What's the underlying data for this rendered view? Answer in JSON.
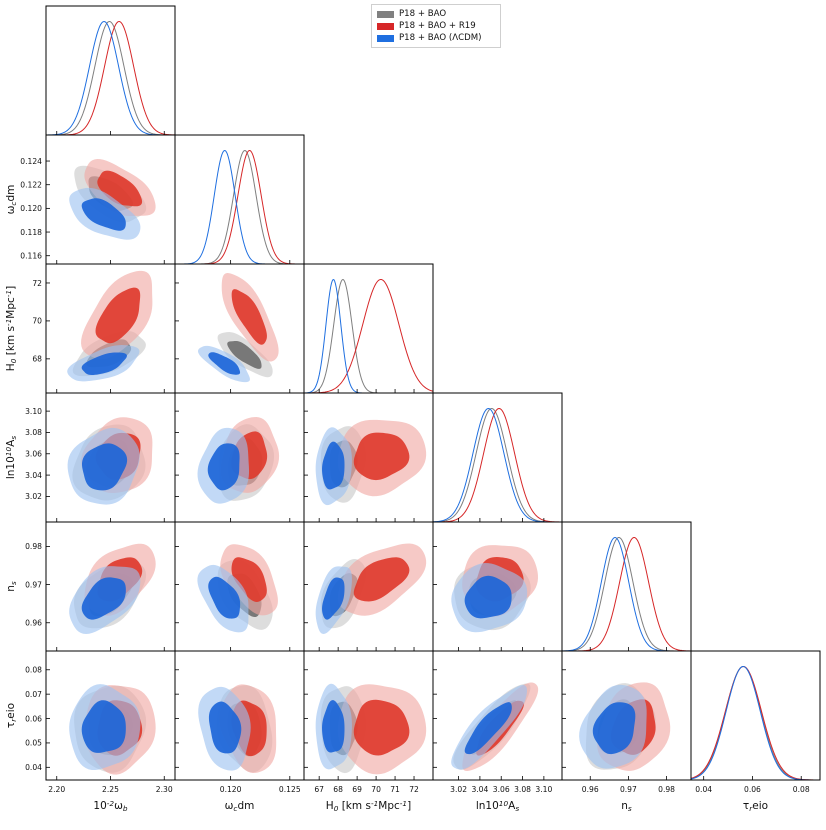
{
  "chart_data": {
    "type": "triangle-corner-plot",
    "parameters": [
      {
        "key": "omega_b",
        "label": "10^{-2}ω_b",
        "range": [
          2.19,
          2.31
        ],
        "ticks": [
          2.2,
          2.25,
          2.3
        ],
        "tick_labels": [
          "2.20",
          "2.25",
          "2.30"
        ]
      },
      {
        "key": "omega_cdm",
        "label": "ω_cdm",
        "range": [
          0.1153,
          0.1262
        ],
        "ticks": [
          0.116,
          0.118,
          0.12,
          0.122,
          0.124
        ],
        "tick_labels": [
          "0.116",
          "0.118",
          "0.120",
          "0.122",
          "0.124"
        ],
        "x_ticks": [
          0.12,
          0.125
        ],
        "x_tick_labels": [
          "0.120",
          "0.125"
        ]
      },
      {
        "key": "H0",
        "label": "H_0 [km s^{-1}Mpc^{-1}]",
        "range": [
          66.2,
          73.0
        ],
        "ticks": [
          67,
          68,
          69,
          70,
          71,
          72
        ],
        "tick_labels": [
          "67",
          "68",
          "69",
          "70",
          "71",
          "72"
        ],
        "y_ticks": [
          68,
          70,
          72
        ],
        "y_tick_labels": [
          "68",
          "70",
          "72"
        ]
      },
      {
        "key": "lnAs",
        "label": "ln10^{10}A_s",
        "range": [
          2.996,
          3.117
        ],
        "ticks": [
          3.02,
          3.04,
          3.06,
          3.08,
          3.1
        ],
        "tick_labels": [
          "3.02",
          "3.04",
          "3.06",
          "3.08",
          "3.10"
        ]
      },
      {
        "key": "ns",
        "label": "n_s",
        "range": [
          0.9526,
          0.9864
        ],
        "ticks": [
          0.96,
          0.97,
          0.98
        ],
        "tick_labels": [
          "0.96",
          "0.97",
          "0.98"
        ]
      },
      {
        "key": "tau",
        "label": "τ_reio",
        "range": [
          0.0348,
          0.0877
        ],
        "ticks": [
          0.04,
          0.05,
          0.06,
          0.07,
          0.08
        ],
        "tick_labels": [
          "0.04",
          "0.05",
          "0.06",
          "0.07",
          "0.08"
        ],
        "x_ticks": [
          0.04,
          0.06,
          0.08
        ],
        "x_tick_labels": [
          "0.04",
          "0.06",
          "0.08"
        ]
      }
    ],
    "series": [
      {
        "name": "P18 + BAO",
        "color": "#7f7f7f",
        "mean": {
          "omega_b": 2.249,
          "omega_cdm": 0.1212,
          "H0": 68.25,
          "lnAs": 3.051,
          "ns": 0.9675,
          "tau": 0.0562
        },
        "sigma": {
          "omega_b": 0.0135,
          "omega_cdm": 0.00095,
          "H0": 0.48,
          "lnAs": 0.0145,
          "ns": 0.0037,
          "tau": 0.0072
        }
      },
      {
        "name": "P18 + BAO + R19",
        "color": "#d62728",
        "mean": {
          "omega_b": 2.258,
          "omega_cdm": 0.1216,
          "H0": 70.25,
          "lnAs": 3.058,
          "ns": 0.9715,
          "tau": 0.0563
        },
        "sigma": {
          "omega_b": 0.0135,
          "omega_cdm": 0.00098,
          "H0": 0.95,
          "lnAs": 0.0145,
          "ns": 0.0038,
          "tau": 0.0074
        }
      },
      {
        "name": "P18 + BAO (ΛCDM)",
        "color": "#1f6fe0",
        "mean": {
          "omega_b": 2.244,
          "omega_cdm": 0.1195,
          "H0": 67.75,
          "lnAs": 3.048,
          "ns": 0.9665,
          "tau": 0.0562
        },
        "sigma": {
          "omega_b": 0.0135,
          "omega_cdm": 0.00088,
          "H0": 0.39,
          "lnAs": 0.0145,
          "ns": 0.0036,
          "tau": 0.007
        }
      }
    ],
    "legend_position": "top-center",
    "legend_entries": [
      "P18 + BAO",
      "P18 + BAO + R19",
      "P18 + BAO (ΛCDM)"
    ]
  }
}
